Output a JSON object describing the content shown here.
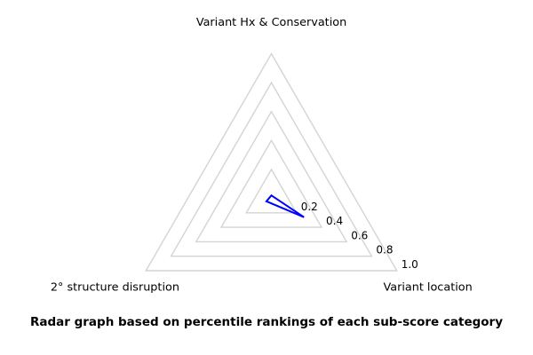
{
  "chart_data": {
    "type": "radar",
    "shape": "triangle",
    "categories": [
      "Variant Hx & Conservation",
      "Variant location",
      "2° structure disruption"
    ],
    "series": [
      {
        "name": "percentile rankings",
        "values": [
          0.02,
          0.26,
          0.04
        ],
        "color": "#0000ff"
      }
    ],
    "radial_ticks": [
      "0.2",
      "0.4",
      "0.6",
      "0.8",
      "1.0"
    ],
    "radial_range": [
      0,
      1
    ],
    "grid_color": "#d4d4d4",
    "grid_on": true,
    "legend": "none",
    "caption": "Radar graph based on percentile rankings of each sub-score category"
  }
}
